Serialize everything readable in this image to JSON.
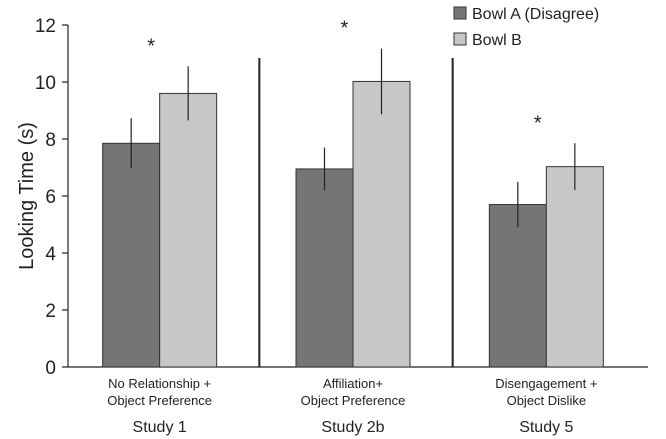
{
  "chart_data": {
    "type": "bar",
    "ylabel": "Looking Time (s)",
    "xlabel": "",
    "ylim": [
      0,
      12
    ],
    "yticks": [
      0,
      2,
      4,
      6,
      8,
      10,
      12
    ],
    "categories": [
      [
        "No Relationship +",
        "Object Preference"
      ],
      [
        "Affiliation+",
        "Object Preference"
      ],
      [
        "Disengagement +",
        "Object Dislike"
      ]
    ],
    "group_labels": [
      "Study 1",
      "Study 2b",
      "Study 5"
    ],
    "series": [
      {
        "name": "Bowl A (Disagree)",
        "color": "#757578",
        "values": [
          7.85,
          6.95,
          5.7
        ],
        "errors": [
          0.88,
          0.75,
          0.8
        ]
      },
      {
        "name": "Bowl B",
        "color": "#c6c7c9",
        "values": [
          9.6,
          10.02,
          7.03
        ],
        "errors": [
          0.95,
          1.15,
          0.82
        ]
      }
    ],
    "annotations": [
      "*",
      "*",
      "*"
    ],
    "grid": false,
    "legend_position": "top-right"
  }
}
